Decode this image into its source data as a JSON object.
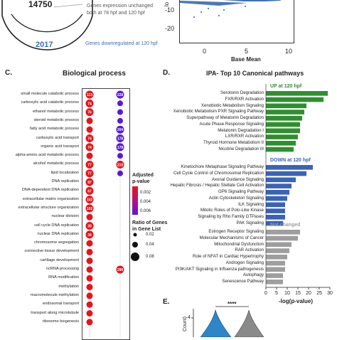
{
  "venn": {
    "top_count": "14750",
    "unchanged_label_1": "Genes expression unchanged",
    "unchanged_label_2": "both at 78 hpf and 120 hpf",
    "down_count": "2017",
    "down_label": "Genes downregulated at 120 hpf",
    "down_color": "#3b6fb6"
  },
  "ma_plot": {
    "xlabel": "Base Mean",
    "ylabel_fragment": "lo",
    "y_ticks": [
      "-10",
      "-20"
    ],
    "x_ticks": [
      "0",
      "5",
      "10"
    ],
    "point_color": "#2a5fb0"
  },
  "panel_c": {
    "letter": "C.",
    "title": "Biological process",
    "legend": {
      "pvalue_title_1": "Adjusted",
      "pvalue_title_2": "p-value",
      "pvalue_ticks": [
        "0.002",
        "0.004",
        "0.006"
      ],
      "ratio_title_1": "Ratio of Genes",
      "ratio_title_2": "in Gene List",
      "ratio_ticks": [
        "0.02",
        "0.04",
        "0.08"
      ],
      "colors": [
        "#e8141b",
        "#b1147a",
        "#5a18d8"
      ]
    },
    "terms": [
      {
        "name": "small molecule catabolic process",
        "c1": "113",
        "c2": "228",
        "c2col": 2
      },
      {
        "name": "carboxylic acid catabolic process",
        "c1": "74",
        "c2": "",
        "c2col": 2
      },
      {
        "name": "ethanol metabolic process",
        "c1": "76",
        "c2": "",
        "c2col": 2
      },
      {
        "name": "steroid metabolic process",
        "c1": "",
        "c2": "",
        "c2col": 0
      },
      {
        "name": "fatty acid metabolic process",
        "c1": "",
        "c2": "204",
        "c2col": 2
      },
      {
        "name": "carboxylic acid transport",
        "c1": "74",
        "c2": "178",
        "c2col": 2
      },
      {
        "name": "organic acid transport",
        "c1": "74",
        "c2": "178",
        "c2col": 2
      },
      {
        "name": "alpha-amino acid metabolic process",
        "c1": "",
        "c2": "",
        "c2col": 0
      },
      {
        "name": "alcohol metabolic process",
        "c1": "77",
        "c2": "210",
        "c2col": 0
      },
      {
        "name": "lipid localization",
        "c1": "77",
        "c2": "",
        "c2col": 0
      },
      {
        "name": "DNA replication",
        "c1": "87",
        "c2": "",
        "c2col": 0
      },
      {
        "name": "DNA-dependent DNA replication",
        "c1": "67",
        "c2": "",
        "c2col": 0
      },
      {
        "name": "extracellular matrix organization",
        "c1": "102",
        "c2": "",
        "c2col": 0
      },
      {
        "name": "extracellular structure organization",
        "c1": "102",
        "c2": "",
        "c2col": 0
      },
      {
        "name": "nuclear division",
        "c1": "",
        "c2": "",
        "c2col": 0
      },
      {
        "name": "cell cycle DNA replication",
        "c1": "38",
        "c2": "",
        "c2col": 0
      },
      {
        "name": "nuclear DNA replication",
        "c1": "38",
        "c2": "",
        "c2col": 0
      },
      {
        "name": "chromosome segregation",
        "c1": "",
        "c2": "",
        "c2col": 0
      },
      {
        "name": "connective tissue development",
        "c1": "",
        "c2": "",
        "c2col": 0
      },
      {
        "name": "cartilage development",
        "c1": "",
        "c2": "",
        "c2col": 0
      },
      {
        "name": "ncRNA processing",
        "c1": "",
        "c2": "290",
        "c2col": 0
      },
      {
        "name": "RNA modification",
        "c1": "",
        "c2": "",
        "c2col": 0
      },
      {
        "name": "methylation",
        "c1": "",
        "c2": "",
        "c2col": 0
      },
      {
        "name": "macromolecule methylation",
        "c1": "",
        "c2": "",
        "c2col": 0
      },
      {
        "name": "endosomal transport",
        "c1": "",
        "c2": "",
        "c2col": 0
      },
      {
        "name": "transport along microtubule",
        "c1": "",
        "c2": "",
        "c2col": 0
      },
      {
        "name": "ribosome biogenesis",
        "c1": "",
        "c2": "",
        "c2col": 0
      },
      {
        "name": "",
        "c1": "",
        "c2": "",
        "c2col": 0
      }
    ]
  },
  "panel_d": {
    "letter": "D.",
    "title": "IPA- Top 10 Canonical pathways",
    "xlabel": "-log(p-value)",
    "x_ticks": [
      "0",
      "5",
      "10",
      "15",
      "20",
      "25",
      "30"
    ],
    "groups": [
      {
        "label": "UP at 120 hpf",
        "color": "#2f8f2f",
        "items": [
          {
            "name": "Serotonin Degradation",
            "value": 29
          },
          {
            "name": "FXR/RXR Activation",
            "value": 27
          },
          {
            "name": "Xenobiotic Metabolism Signaling",
            "value": 19
          },
          {
            "name": "Xenobiotic Metabolism PXR Signaling Pathway",
            "value": 18
          },
          {
            "name": "Superpathway of Melatonin Degradation",
            "value": 17
          },
          {
            "name": "Acute Phase Response Signaling",
            "value": 16
          },
          {
            "name": "Melatonin Degradation I",
            "value": 16
          },
          {
            "name": "LXR/RXR Activation",
            "value": 15
          },
          {
            "name": "Thyroid Hormone Metabolism II",
            "value": 14
          },
          {
            "name": "Nicotine Degradation III",
            "value": 13
          }
        ]
      },
      {
        "label": "DOWN at 120 hpf",
        "color": "#3a62b8",
        "items": [
          {
            "name": "Kinetochore Metaphase Signaling Pathway",
            "value": 22
          },
          {
            "name": "Cell Cycle Control of Chromosomal Replication",
            "value": 19
          },
          {
            "name": "Axonal Guidance Signaling",
            "value": 14
          },
          {
            "name": "Hepatic Fibrosis / Hepatic Stellate Cell Activation",
            "value": 12
          },
          {
            "name": "GP6 Signaling Pathway",
            "value": 11
          },
          {
            "name": "Actin Cytoskeleton Signaling",
            "value": 10
          },
          {
            "name": "ILK Signaling",
            "value": 9
          },
          {
            "name": "Mitotic Roles of Polo-Like Kinase",
            "value": 9
          },
          {
            "name": "Signaling by Rho Family GTPases",
            "value": 9
          },
          {
            "name": "PAK Signaling",
            "value": 8
          }
        ]
      },
      {
        "label": "Not changed",
        "color": "#9e9e9e",
        "items": [
          {
            "name": "Estrogen Receptor Signaling",
            "value": 16
          },
          {
            "name": "Molecular Mechanisms of Cancer",
            "value": 15
          },
          {
            "name": "Mitochondrial Dysfunction",
            "value": 12
          },
          {
            "name": "RAR Activation",
            "value": 11
          },
          {
            "name": "Role of NFAT in Cardiac Hypertrophy",
            "value": 10
          },
          {
            "name": "Androgen Signaling",
            "value": 9
          },
          {
            "name": "PI3K/AKT Signaling in Influenza pathogenesis",
            "value": 9
          },
          {
            "name": "Autophagy",
            "value": 8
          },
          {
            "name": "Senescence Pathway",
            "value": 8
          }
        ]
      }
    ]
  },
  "panel_e": {
    "letter": "E.",
    "significance": "****",
    "ylabel_fragment": "Count)",
    "y_tick": "4",
    "colors": [
      "#2e86c8",
      "#8a8a8a"
    ]
  }
}
